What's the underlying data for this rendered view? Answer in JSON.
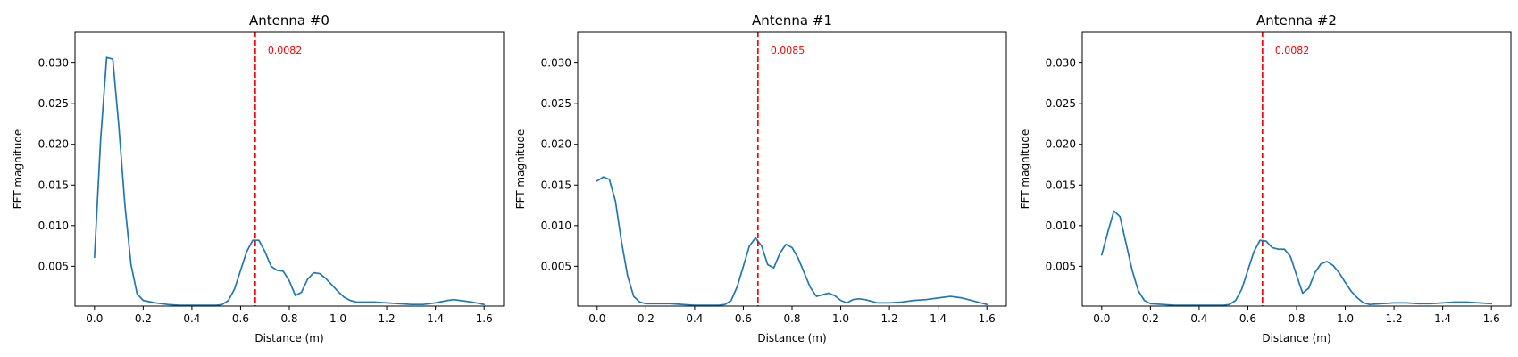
{
  "chart_data": [
    {
      "type": "line",
      "title": "Antenna #0",
      "xlabel": "Distance (m)",
      "ylabel": "FFT magnitude",
      "xlim": [
        -0.08,
        1.68
      ],
      "ylim": [
        0.0001,
        0.0338
      ],
      "xticks": [
        "0.0",
        "0.2",
        "0.4",
        "0.6",
        "0.8",
        "1.0",
        "1.2",
        "1.4",
        "1.6"
      ],
      "yticks": [
        "0.005",
        "0.010",
        "0.015",
        "0.020",
        "0.025",
        "0.030"
      ],
      "grid": false,
      "line_color": "#1f77b4",
      "marker_color": "#ff0000",
      "vline_x": 0.66,
      "annotation": "0.0082",
      "x": [
        0.0,
        0.025,
        0.05,
        0.075,
        0.1,
        0.125,
        0.15,
        0.175,
        0.2,
        0.25,
        0.3,
        0.35,
        0.4,
        0.45,
        0.5,
        0.525,
        0.55,
        0.575,
        0.6,
        0.625,
        0.65,
        0.675,
        0.7,
        0.725,
        0.75,
        0.775,
        0.8,
        0.825,
        0.85,
        0.875,
        0.9,
        0.925,
        0.95,
        0.975,
        1.0,
        1.025,
        1.05,
        1.075,
        1.1,
        1.15,
        1.2,
        1.25,
        1.3,
        1.35,
        1.4,
        1.45,
        1.475,
        1.5,
        1.55,
        1.6
      ],
      "y": [
        0.0061,
        0.0205,
        0.0307,
        0.0305,
        0.0222,
        0.0125,
        0.0052,
        0.0016,
        0.0008,
        0.0005,
        0.0003,
        0.0002,
        0.0002,
        0.0002,
        0.0002,
        0.0003,
        0.0008,
        0.0022,
        0.0045,
        0.0068,
        0.0082,
        0.0082,
        0.0068,
        0.005,
        0.0045,
        0.0044,
        0.0032,
        0.0014,
        0.0018,
        0.0034,
        0.0042,
        0.0041,
        0.0035,
        0.0027,
        0.0019,
        0.0012,
        0.0008,
        0.0006,
        0.0006,
        0.0006,
        0.0005,
        0.0004,
        0.0003,
        0.0003,
        0.0005,
        0.0008,
        0.0009,
        0.0008,
        0.0006,
        0.0003
      ]
    },
    {
      "type": "line",
      "title": "Antenna #1",
      "xlabel": "Distance (m)",
      "ylabel": "FFT magnitude",
      "xlim": [
        -0.08,
        1.68
      ],
      "ylim": [
        0.0001,
        0.0338
      ],
      "xticks": [
        "0.0",
        "0.2",
        "0.4",
        "0.6",
        "0.8",
        "1.0",
        "1.2",
        "1.4",
        "1.6"
      ],
      "yticks": [
        "0.005",
        "0.010",
        "0.015",
        "0.020",
        "0.025",
        "0.030"
      ],
      "grid": false,
      "line_color": "#1f77b4",
      "marker_color": "#ff0000",
      "vline_x": 0.66,
      "annotation": "0.0085",
      "x": [
        0.0,
        0.025,
        0.05,
        0.075,
        0.1,
        0.125,
        0.15,
        0.175,
        0.2,
        0.25,
        0.3,
        0.35,
        0.4,
        0.45,
        0.5,
        0.525,
        0.55,
        0.575,
        0.6,
        0.625,
        0.65,
        0.675,
        0.7,
        0.725,
        0.75,
        0.775,
        0.8,
        0.825,
        0.85,
        0.875,
        0.9,
        0.925,
        0.95,
        0.975,
        1.0,
        1.025,
        1.05,
        1.075,
        1.1,
        1.15,
        1.2,
        1.25,
        1.3,
        1.35,
        1.4,
        1.45,
        1.5,
        1.55,
        1.6
      ],
      "y": [
        0.0155,
        0.016,
        0.0157,
        0.013,
        0.008,
        0.0038,
        0.0013,
        0.0006,
        0.0004,
        0.0004,
        0.0004,
        0.0003,
        0.0002,
        0.0002,
        0.0002,
        0.0003,
        0.0008,
        0.0025,
        0.005,
        0.0075,
        0.0085,
        0.0075,
        0.0052,
        0.0048,
        0.0066,
        0.0077,
        0.0073,
        0.006,
        0.0042,
        0.0024,
        0.0013,
        0.0015,
        0.0017,
        0.0014,
        0.0008,
        0.0005,
        0.0009,
        0.001,
        0.0009,
        0.0005,
        0.0005,
        0.0006,
        0.0008,
        0.0009,
        0.0011,
        0.0013,
        0.0011,
        0.0007,
        0.0003
      ]
    },
    {
      "type": "line",
      "title": "Antenna #2",
      "xlabel": "Distance (m)",
      "ylabel": "FFT magnitude",
      "xlim": [
        -0.08,
        1.68
      ],
      "ylim": [
        0.0001,
        0.0338
      ],
      "xticks": [
        "0.0",
        "0.2",
        "0.4",
        "0.6",
        "0.8",
        "1.0",
        "1.2",
        "1.4",
        "1.6"
      ],
      "yticks": [
        "0.005",
        "0.010",
        "0.015",
        "0.020",
        "0.025",
        "0.030"
      ],
      "grid": false,
      "line_color": "#1f77b4",
      "marker_color": "#ff0000",
      "vline_x": 0.66,
      "annotation": "0.0082",
      "x": [
        0.0,
        0.025,
        0.05,
        0.075,
        0.1,
        0.125,
        0.15,
        0.175,
        0.2,
        0.25,
        0.3,
        0.35,
        0.4,
        0.45,
        0.5,
        0.525,
        0.55,
        0.575,
        0.6,
        0.625,
        0.65,
        0.675,
        0.7,
        0.725,
        0.75,
        0.775,
        0.8,
        0.825,
        0.85,
        0.875,
        0.9,
        0.925,
        0.95,
        0.975,
        1.0,
        1.025,
        1.05,
        1.075,
        1.1,
        1.15,
        1.2,
        1.25,
        1.3,
        1.35,
        1.4,
        1.45,
        1.5,
        1.55,
        1.6
      ],
      "y": [
        0.0064,
        0.0092,
        0.0118,
        0.0111,
        0.0078,
        0.0045,
        0.002,
        0.0008,
        0.0004,
        0.0003,
        0.0002,
        0.0002,
        0.0002,
        0.0002,
        0.0002,
        0.0003,
        0.0008,
        0.0022,
        0.0045,
        0.0068,
        0.0082,
        0.0081,
        0.0073,
        0.0071,
        0.0071,
        0.0062,
        0.0039,
        0.0017,
        0.0023,
        0.0042,
        0.0053,
        0.0056,
        0.0051,
        0.0042,
        0.003,
        0.0019,
        0.0011,
        0.0005,
        0.0003,
        0.0004,
        0.0005,
        0.0005,
        0.0004,
        0.0004,
        0.0005,
        0.0006,
        0.0006,
        0.0005,
        0.0004
      ]
    }
  ]
}
